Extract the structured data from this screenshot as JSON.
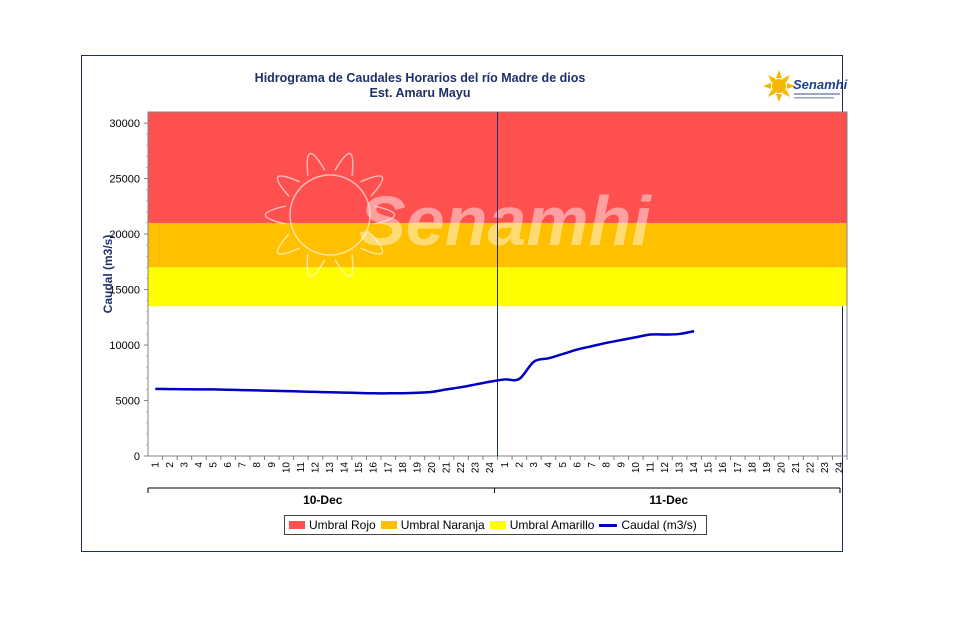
{
  "title_line1": "Hidrograma de Caudales Horarios del río Madre de dios",
  "title_line2": "Est. Amaru Mayu",
  "logo_text": "Senamhi",
  "watermark_text": "Senamhi",
  "colors": {
    "rojo": "#ff5050",
    "naranja": "#ffc000",
    "amarillo": "#ffff00",
    "caudal": "#0000c0",
    "text": "#1f2f6b"
  },
  "chart_data": {
    "type": "line",
    "title": "Hidrograma de Caudales Horarios del río Madre de dios",
    "subtitle": "Est. Amaru Mayu",
    "ylabel": "Caudal  (m3/s)",
    "xlabel": "",
    "ylim": [
      0,
      31000
    ],
    "yticks": [
      0,
      5000,
      10000,
      15000,
      20000,
      25000,
      30000
    ],
    "x_tick_labels": [
      "1",
      "2",
      "3",
      "4",
      "5",
      "6",
      "7",
      "8",
      "9",
      "10",
      "11",
      "12",
      "13",
      "14",
      "15",
      "16",
      "17",
      "18",
      "19",
      "20",
      "21",
      "22",
      "23",
      "24",
      "1",
      "2",
      "3",
      "4",
      "5",
      "6",
      "7",
      "8",
      "9",
      "10",
      "11",
      "12",
      "13",
      "14",
      "15",
      "16",
      "17",
      "18",
      "19",
      "20",
      "21",
      "22",
      "23",
      "24"
    ],
    "day_labels": [
      "10-Dec",
      "11-Dec"
    ],
    "thresholds": [
      {
        "name": "Umbral Rojo",
        "from": 21000,
        "to": 31000,
        "color": "#ff5050"
      },
      {
        "name": "Umbral Naranja",
        "from": 17000,
        "to": 21000,
        "color": "#ffc000"
      },
      {
        "name": "Umbral Amarillo",
        "from": 13500,
        "to": 17000,
        "color": "#ffff00"
      }
    ],
    "series": [
      {
        "name": "Caudal (m3/s)",
        "color": "#0000c0",
        "values": [
          6050,
          6030,
          6010,
          6000,
          6000,
          5970,
          5940,
          5910,
          5880,
          5850,
          5810,
          5780,
          5740,
          5710,
          5680,
          5650,
          5650,
          5660,
          5700,
          5780,
          6000,
          6200,
          6450,
          6700,
          6900,
          6950,
          8500,
          8800,
          9200,
          9600,
          9900,
          10200,
          10450,
          10700,
          10950,
          10950,
          11000,
          11250
        ]
      }
    ],
    "legend": [
      "Umbral Rojo",
      "Umbral Naranja",
      "Umbral Amarillo",
      "Caudal (m3/s)"
    ],
    "legend_position": "bottom"
  }
}
